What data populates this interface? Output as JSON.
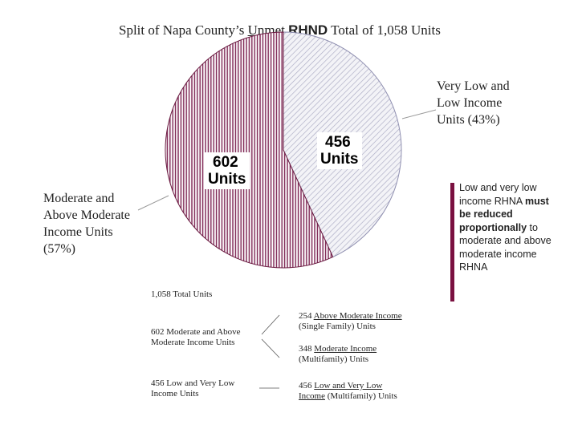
{
  "chart_data": {
    "type": "pie",
    "title_parts": {
      "prefix": "Split of Napa County’s ",
      "unmet": "Unmet",
      "rhnd": "RHND",
      "suffix": " Total of 1,058 Units"
    },
    "slices": [
      {
        "name": "Very Low and Low Income Units (43%)",
        "value": 456,
        "percent": 43,
        "label_lines": [
          "Very Low and",
          "Low Income",
          "Units (43%)"
        ],
        "box_lines": [
          "456",
          "Units"
        ],
        "color": "#c8c8dc"
      },
      {
        "name": "Moderate and Above Moderate Income Units (57%)",
        "value": 602,
        "percent": 57,
        "label_lines": [
          "Moderate and",
          "Above Moderate",
          "Income Units",
          "(57%)"
        ],
        "box_lines": [
          "602",
          "Units"
        ],
        "color": "#8a2f5a"
      }
    ],
    "total": 1058
  },
  "note": {
    "normal1": "Low and very low income RHNA ",
    "bold": "must be reduced proportionally",
    "normal2": " to moderate and above moderate income RHNA"
  },
  "breakdown": {
    "total_line": "1,058 Total Units",
    "left_items": [
      [
        "602 Moderate and Above",
        "Moderate Income Units"
      ],
      [
        "456 Low and Very Low",
        "Income Units"
      ]
    ],
    "right_items": [
      {
        "num": "254 ",
        "u": "Above Moderate Income",
        "line2": "(Single Family) Units"
      },
      {
        "num": "348 ",
        "u": "Moderate Income",
        "line2": "(Multifamily) Units"
      },
      {
        "num": "456 ",
        "u": "Low and Very Low",
        "line2_u": "Income",
        "line2": " (Multifamily) Units"
      }
    ]
  },
  "colors": {
    "accent": "#7a1040",
    "hatch_light": "#b8b8cc",
    "hatch_dark": "#7b2150"
  }
}
